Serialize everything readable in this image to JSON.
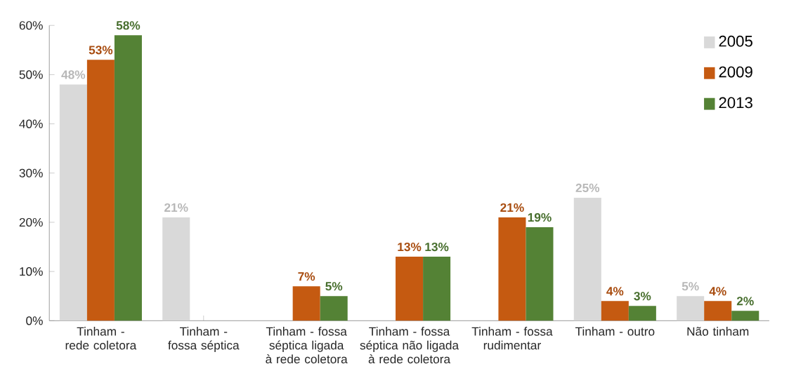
{
  "chart_data": {
    "type": "bar",
    "categories": [
      "Tinham - rede coletora",
      "Tinham - fossa séptica",
      "Tinham - fossa séptica ligada à rede coletora",
      "Tinham - fossa séptica não ligada à rede coletora",
      "Tinham - fossa rudimentar",
      "Tinham - outro",
      "Não tinham"
    ],
    "series": [
      {
        "name": "2005",
        "color": "#d9d9d9",
        "values": [
          48,
          21,
          0,
          0,
          0,
          25,
          5
        ],
        "value_labels": [
          "48%",
          "21%",
          null,
          null,
          null,
          "25%",
          "5%"
        ]
      },
      {
        "name": "2009",
        "color": "#c55a11",
        "values": [
          53,
          0,
          7,
          13,
          21,
          4,
          4
        ],
        "value_labels": [
          "53%",
          null,
          "7%",
          "13%",
          "21%",
          "4%",
          "4%"
        ]
      },
      {
        "name": "2013",
        "color": "#548235",
        "values": [
          58,
          0,
          5,
          13,
          19,
          3,
          2
        ],
        "value_labels": [
          "58%",
          null,
          "5%",
          "13%",
          "19%",
          "3%",
          "2%"
        ]
      }
    ],
    "ylim": [
      0,
      60
    ],
    "yticks": [
      {
        "value": 0,
        "label": "0%"
      },
      {
        "value": 10,
        "label": "10%"
      },
      {
        "value": 20,
        "label": "20%"
      },
      {
        "value": 30,
        "label": "30%"
      },
      {
        "value": 40,
        "label": "40%"
      },
      {
        "value": 50,
        "label": "50%"
      },
      {
        "value": 60,
        "label": "60%"
      }
    ],
    "legend": "top right"
  }
}
